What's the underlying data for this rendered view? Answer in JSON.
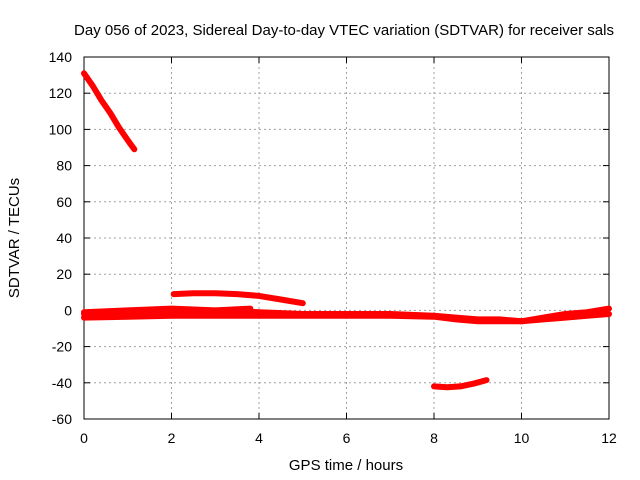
{
  "chart_data": {
    "type": "line",
    "title": "Day 056 of 2023, Sidereal Day-to-day VTEC variation (SDTVAR) for receiver sals",
    "xlabel": "GPS time / hours",
    "ylabel": "SDTVAR / TECUs",
    "xlim": [
      0,
      12
    ],
    "ylim": [
      -60,
      140
    ],
    "xticks": [
      "0",
      "2",
      "4",
      "6",
      "8",
      "10",
      "12"
    ],
    "yticks": [
      "-60",
      "-40",
      "-20",
      "0",
      "20",
      "40",
      "60",
      "80",
      "100",
      "120",
      "140"
    ],
    "grid": true,
    "color": "#ff0000",
    "series": [
      {
        "x": [
          0.0,
          0.2,
          0.4,
          0.6,
          0.8,
          1.0,
          1.15
        ],
        "y": [
          131,
          124,
          116,
          109,
          101,
          94,
          89
        ]
      },
      {
        "x": [
          2.05,
          2.5,
          3.0,
          3.5,
          4.0,
          4.5,
          5.0
        ],
        "y": [
          9,
          9.5,
          9.5,
          9,
          8,
          6,
          4
        ]
      },
      {
        "x": [
          0.0,
          1.0,
          2.0,
          3.0,
          4.0,
          5.0,
          6.0,
          7.0,
          8.0,
          8.5,
          9.0,
          9.5,
          10.0,
          10.5,
          11.0,
          11.5,
          12.0
        ],
        "y": [
          -1,
          0,
          1,
          0,
          -1,
          -2,
          -2,
          -2,
          -3,
          -4,
          -5,
          -5,
          -6,
          -4,
          -2,
          -1,
          1
        ]
      },
      {
        "x": [
          0.0,
          1.0,
          2.0,
          3.0,
          4.0,
          5.0,
          6.0,
          7.0,
          8.0,
          8.5,
          9.0,
          9.5,
          10.0,
          10.5,
          11.0,
          11.5,
          12.0
        ],
        "y": [
          -4,
          -3.5,
          -3,
          -3,
          -3,
          -3,
          -3,
          -3,
          -3.5,
          -5,
          -6,
          -6,
          -6,
          -5,
          -4,
          -3,
          -2
        ]
      },
      {
        "x": [
          0.0,
          1.0,
          2.0,
          3.0,
          3.8
        ],
        "y": [
          -2,
          -1,
          -0.5,
          0,
          1
        ]
      },
      {
        "x": [
          8.0,
          8.3,
          8.6,
          8.9,
          9.2
        ],
        "y": [
          -42,
          -42.5,
          -42,
          -40.5,
          -38.5
        ]
      }
    ]
  }
}
